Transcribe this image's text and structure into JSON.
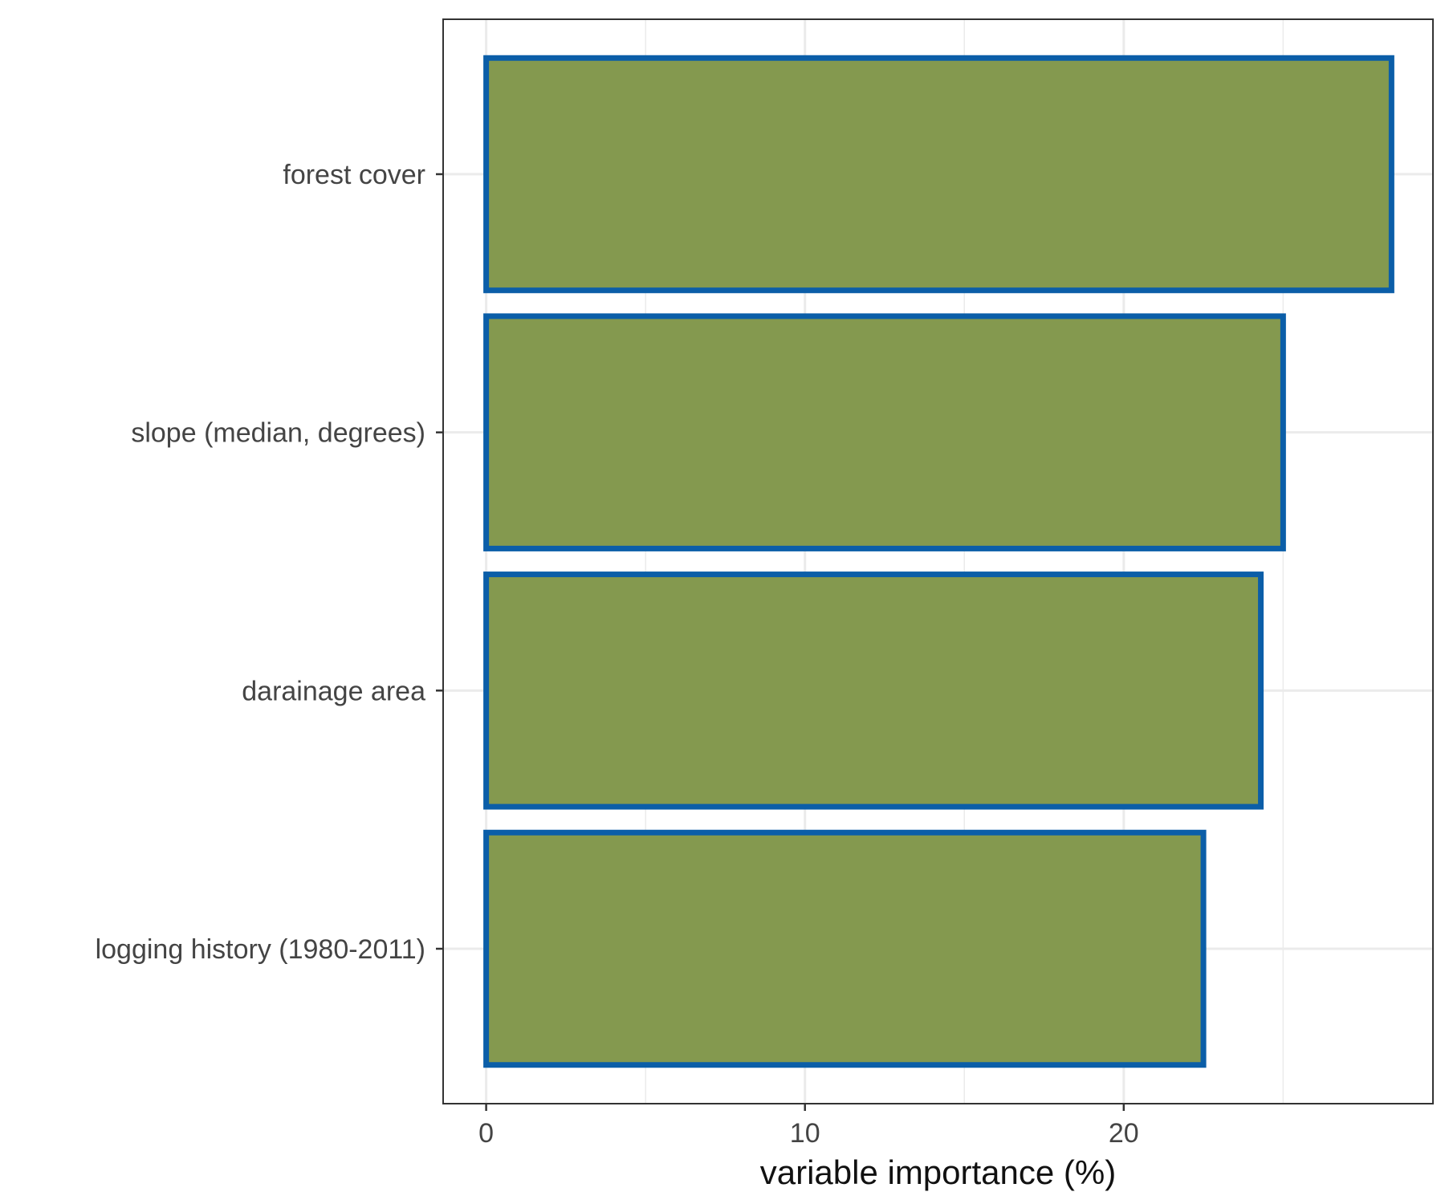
{
  "chart_data": {
    "type": "bar",
    "orientation": "horizontal",
    "categories": [
      "forest cover",
      "slope (median, degrees)",
      "darainage area",
      "logging history (1980-2011)"
    ],
    "values": [
      28.4,
      25.0,
      24.3,
      22.5
    ],
    "title": "",
    "xlabel": "variable importance (%)",
    "ylabel": "",
    "xlim": [
      -1.35,
      29.7
    ],
    "xticks": [
      0,
      10,
      20
    ],
    "grid": true,
    "legend": "none",
    "colors": {
      "bar_fill": "#84994f",
      "bar_outline": "#0b5ea8",
      "grid": "#ebebeb",
      "panel_border": "#333333",
      "tick_text": "#444444",
      "axis_title": "#111111"
    }
  }
}
